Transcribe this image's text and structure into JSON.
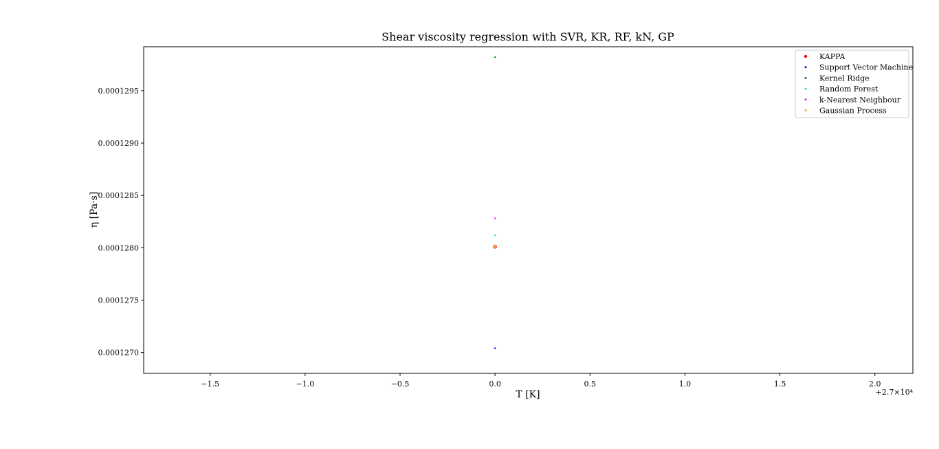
{
  "chart_data": {
    "type": "scatter",
    "title": "Shear viscosity regression with SVR, KR, RF, kN, GP",
    "xlabel": "T [K]",
    "ylabel": "η [Pa·s]",
    "x_offset_label": "+2.7×10⁴",
    "xlim": [
      26998.15,
      27002.2
    ],
    "ylim": [
      0.0001268,
      0.00012992
    ],
    "x_ticks": [
      -1.5,
      -1.0,
      -0.5,
      0.0,
      0.5,
      1.0,
      1.5,
      2.0
    ],
    "x_tick_labels": [
      "−1.5",
      "−1.0",
      "−0.5",
      "0.0",
      "0.5",
      "1.0",
      "1.5",
      "2.0"
    ],
    "y_ticks": [
      0.000127,
      0.0001275,
      0.000128,
      0.0001285,
      0.000129,
      0.0001295
    ],
    "y_tick_labels": [
      "0.0001270",
      "0.0001275",
      "0.0001280",
      "0.0001285",
      "0.0001290",
      "0.0001295"
    ],
    "grid": false,
    "legend_position": "top-right",
    "series": [
      {
        "name": "KAPPA",
        "color": "#ff0000",
        "x": [
          27000.0
        ],
        "y": [
          0.00012801
        ]
      },
      {
        "name": "Support Vector Machine",
        "color": "#0000ff",
        "x": [
          27000.0
        ],
        "y": [
          0.00012704
        ]
      },
      {
        "name": "Kernel Ridge",
        "color": "#008000",
        "x": [
          27000.0
        ],
        "y": [
          0.00012982
        ]
      },
      {
        "name": "Random Forest",
        "color": "#00e5e5",
        "x": [
          27000.0
        ],
        "y": [
          0.00012812
        ]
      },
      {
        "name": "k-Nearest Neighbour",
        "color": "#ff00ff",
        "x": [
          27000.0
        ],
        "y": [
          0.00012828
        ]
      },
      {
        "name": "Gaussian Process",
        "color": "#ffa500",
        "x": [
          27000.0
        ],
        "y": [
          0.00012801
        ]
      }
    ]
  }
}
